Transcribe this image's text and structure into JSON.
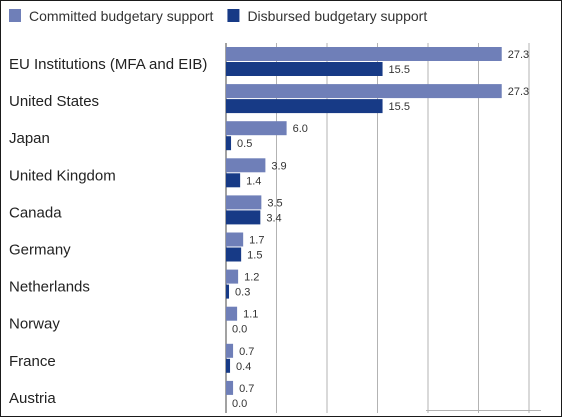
{
  "chart_data": {
    "type": "bar",
    "orientation": "horizontal",
    "categories": [
      "EU Institutions (MFA and EIB)",
      "United States",
      "Japan",
      "United Kingdom",
      "Canada",
      "Germany",
      "Netherlands",
      "Norway",
      "France",
      "Austria"
    ],
    "series": [
      {
        "name": "Committed budgetary support",
        "color": "#6f7fb8",
        "values": [
          27.3,
          27.3,
          6.0,
          3.9,
          3.5,
          1.7,
          1.2,
          1.1,
          0.7,
          0.7
        ],
        "labels": [
          "27.3",
          "27.3",
          "6.0",
          "3.9",
          "3.5",
          "1.7",
          "1.2",
          "1.1",
          "0.7",
          "0.7"
        ]
      },
      {
        "name": "Disbursed budgetary support",
        "color": "#173a86",
        "values": [
          15.5,
          15.5,
          0.5,
          1.4,
          3.4,
          1.5,
          0.3,
          0.0,
          0.4,
          0.0
        ],
        "labels": [
          "15.5",
          "15.5",
          "0.5",
          "1.4",
          "3.4",
          "1.5",
          "0.3",
          "0.0",
          "0.4",
          "0.0"
        ]
      }
    ],
    "title": "",
    "xlabel": "",
    "ylabel": "",
    "xlim": [
      0,
      30
    ],
    "grid": "vertical",
    "legend": "top-left"
  }
}
